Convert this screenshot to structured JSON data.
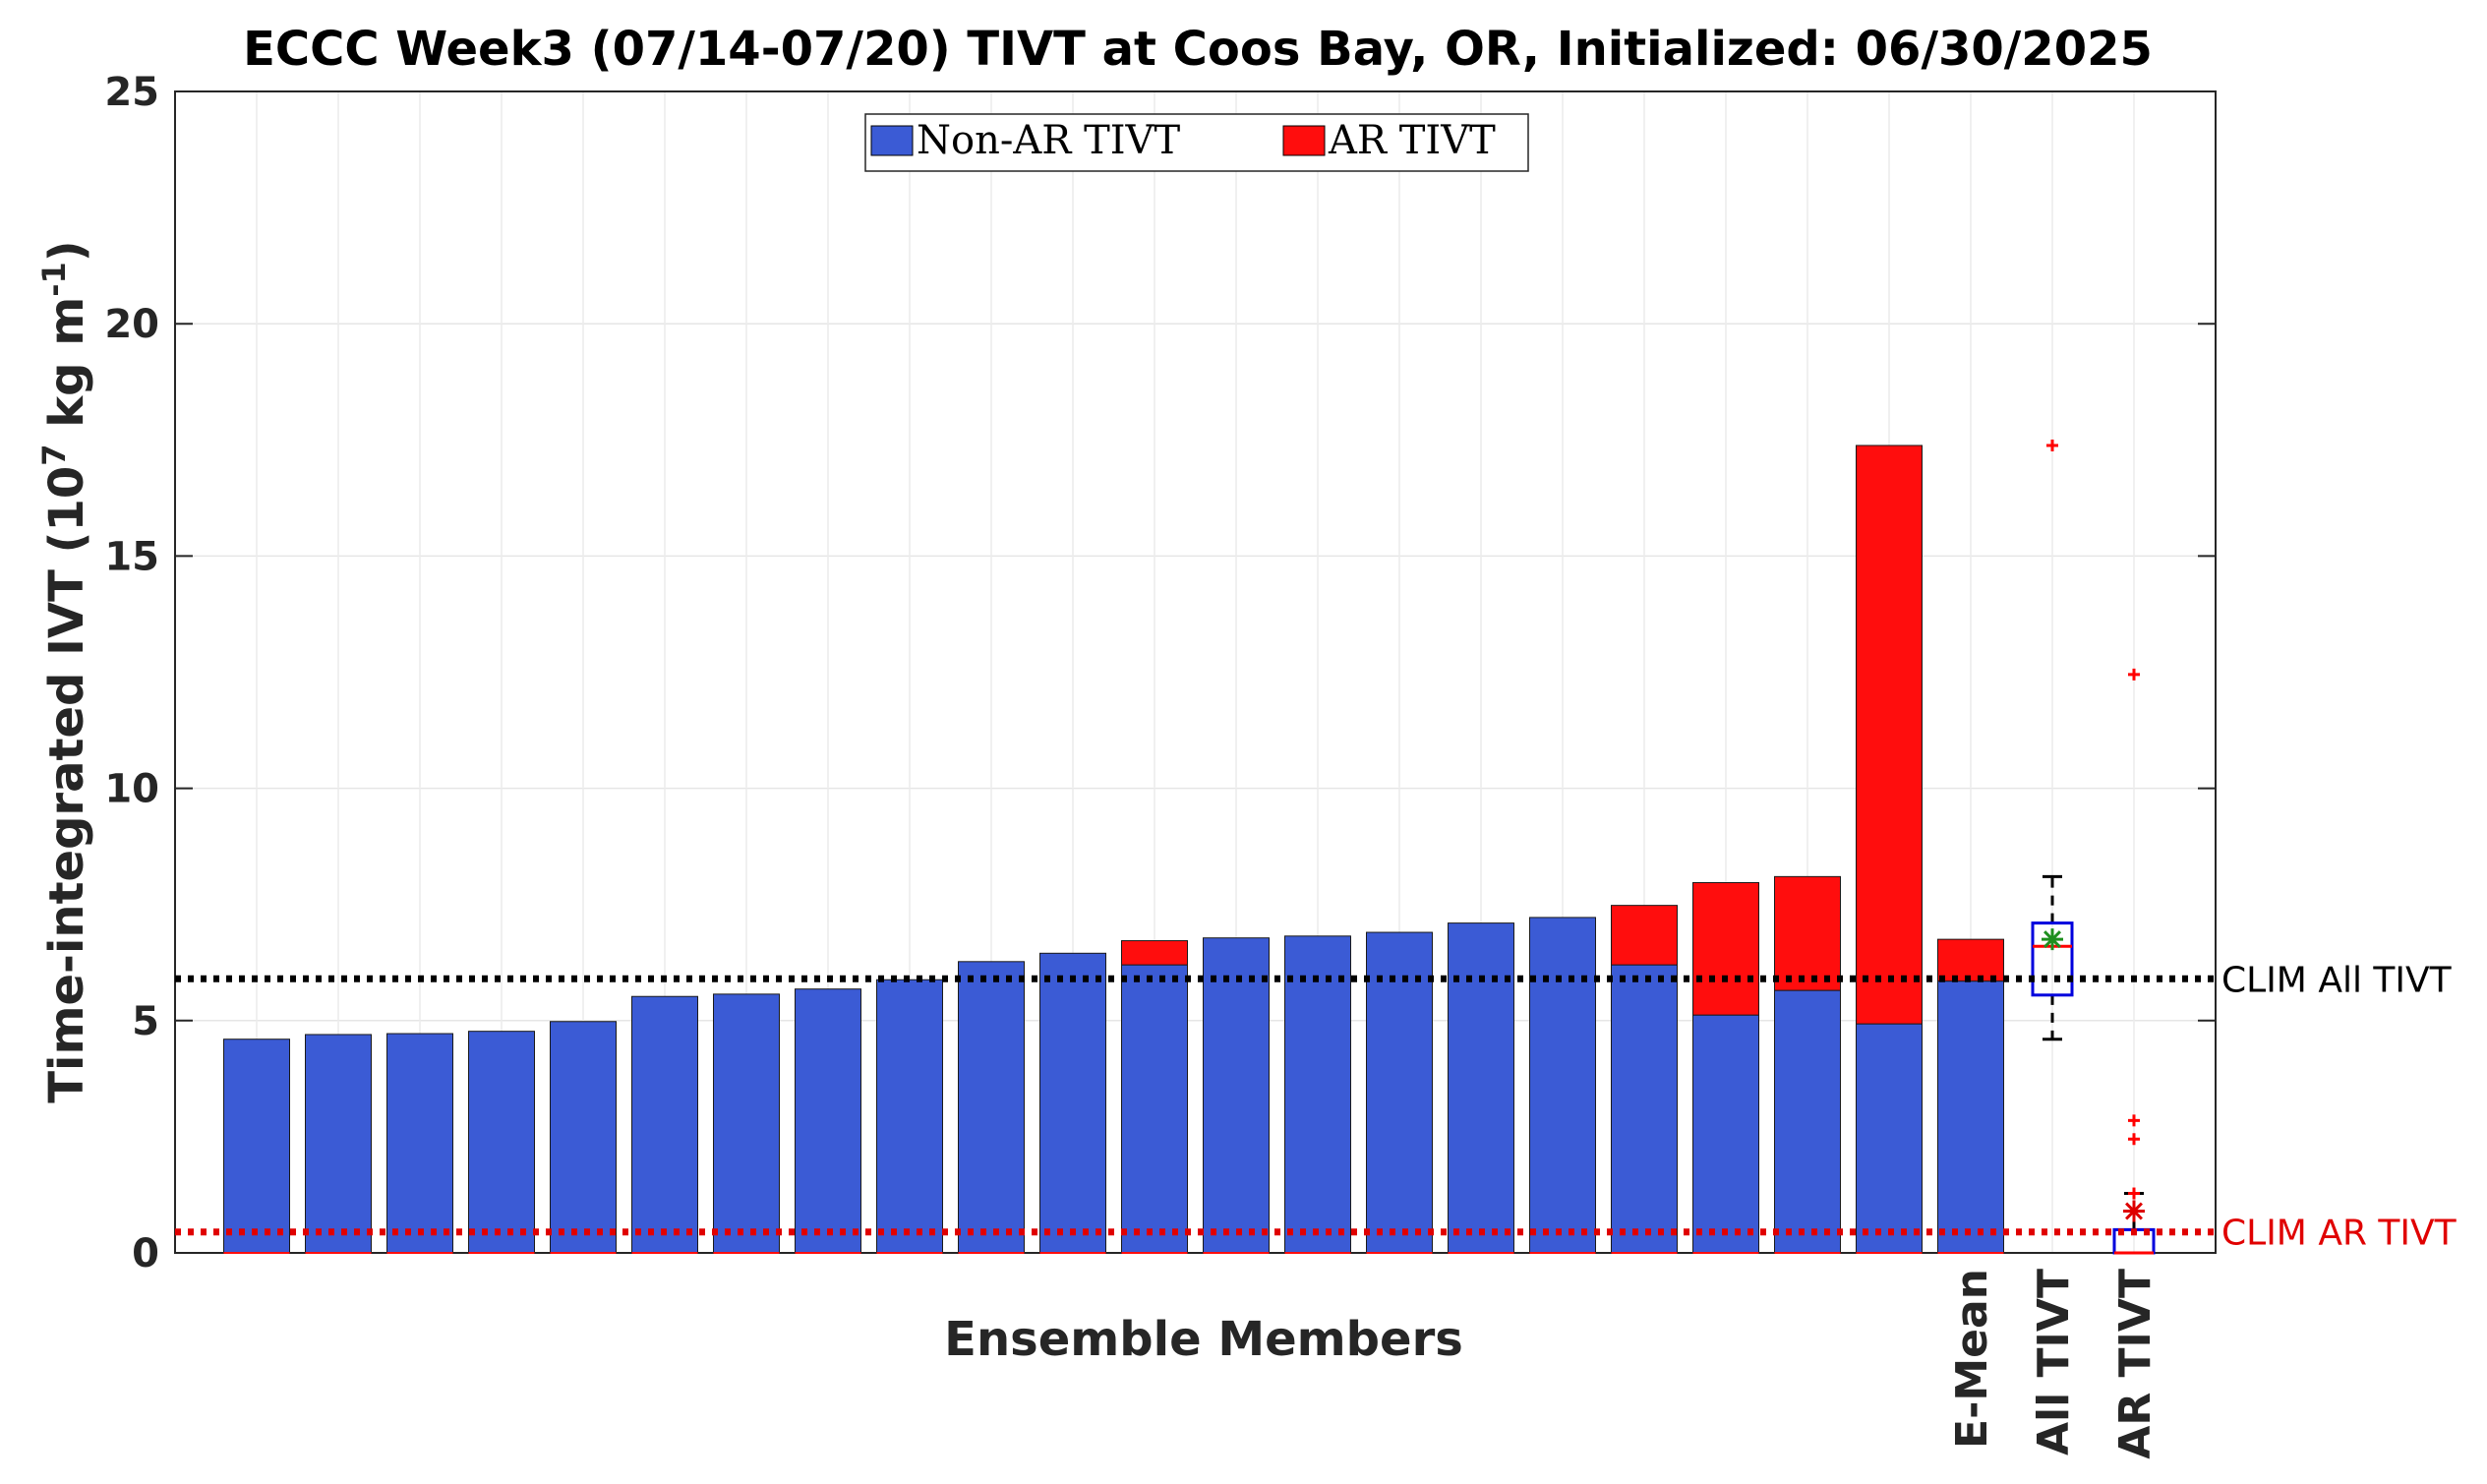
{
  "chart_data": {
    "type": "bar",
    "title": "ECCC Week3 (07/14-07/20) TIVT at Coos Bay, OR, Initialized: 06/30/2025",
    "xlabel": "Ensemble Members",
    "ylabel": "Time-integrated IVT (10",
    "ylabel_sup": "7",
    "ylabel_unit": " kg m",
    "ylabel_sup2": "-1",
    "ylabel_end": ")",
    "ylim": [
      0,
      25
    ],
    "yticks": [
      0,
      5,
      10,
      15,
      20,
      25
    ],
    "grid": true,
    "legend_placement": "top-center",
    "series": [
      {
        "name": "Non-AR TIVT",
        "color": "#3b5bd5",
        "values": [
          4.6,
          4.7,
          4.72,
          4.77,
          4.98,
          5.52,
          5.57,
          5.68,
          5.88,
          6.27,
          6.45,
          6.2,
          6.78,
          6.82,
          6.9,
          7.1,
          7.22,
          6.2,
          5.12,
          5.65,
          4.93,
          5.85
        ]
      },
      {
        "name": "AR TIVT",
        "color": "#ff0d0d",
        "values": [
          0,
          0,
          0,
          0,
          0,
          0,
          0,
          0,
          0,
          0,
          0,
          0.52,
          0,
          0,
          0,
          0,
          0,
          1.28,
          2.85,
          2.45,
          12.45,
          0.9
        ]
      }
    ],
    "categories": [
      "",
      "",
      "",
      "",
      "",
      "",
      "",
      "",
      "",
      "",
      "",
      "",
      "",
      "",
      "",
      "",
      "",
      "",
      "",
      "",
      "",
      "E-Mean"
    ],
    "boxplots": [
      {
        "label": "All TIVT",
        "q1": 5.55,
        "median": 6.6,
        "q3": 7.1,
        "whisker_low": 4.6,
        "whisker_high": 8.1,
        "mean": 6.75,
        "outliers": [
          17.38
        ],
        "box_color": "#0000dd",
        "median_color": "#ff0000",
        "mean_color": "#1e8f1e"
      },
      {
        "label": "AR TIVT",
        "q1": 0,
        "median": 0,
        "q3": 0.5,
        "whisker_low": 0,
        "whisker_high": 1.28,
        "mean": 0.9,
        "outliers": [
          12.45,
          2.85,
          2.45,
          1.28
        ],
        "box_color": "#0000dd",
        "median_color": "#ff0000",
        "mean_color": "#dd0000"
      }
    ],
    "reference_lines": [
      {
        "name": "CLIM All TIVT",
        "value": 5.9,
        "color": "#000000"
      },
      {
        "name": "CLIM AR TIVT",
        "value": 0.45,
        "color": "#e00000"
      }
    ]
  }
}
